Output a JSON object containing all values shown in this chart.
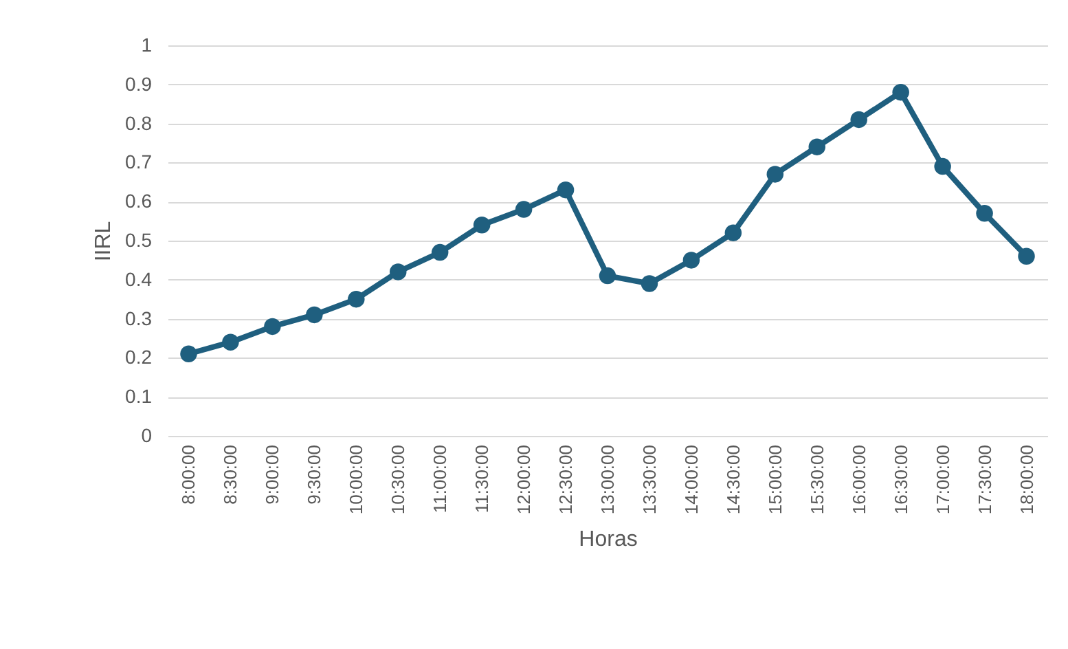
{
  "chart_data": {
    "type": "line",
    "xlabel": "Horas",
    "ylabel": "IIRL",
    "categories": [
      "8:00:00",
      "8:30:00",
      "9:00:00",
      "9:30:00",
      "10:00:00",
      "10:30:00",
      "11:00:00",
      "11:30:00",
      "12:00:00",
      "12:30:00",
      "13:00:00",
      "13:30:00",
      "14:00:00",
      "14:30:00",
      "15:00:00",
      "15:30:00",
      "16:00:00",
      "16:30:00",
      "17:00:00",
      "17:30:00",
      "18:00:00"
    ],
    "series": [
      {
        "color": "#1f5f7f",
        "values": [
          0.21,
          0.24,
          0.28,
          0.31,
          0.35,
          0.42,
          0.47,
          0.54,
          0.58,
          0.63,
          0.41,
          0.39,
          0.45,
          0.52,
          0.67,
          0.74,
          0.81,
          0.88,
          0.69,
          0.57,
          0.46
        ]
      }
    ],
    "ylim": [
      0,
      1
    ],
    "yticks": [
      0,
      0.1,
      0.2,
      0.3,
      0.4,
      0.5,
      0.6,
      0.7,
      0.8,
      0.9,
      1
    ],
    "grid": "y",
    "marker": "circle",
    "line_style": "solid",
    "legend": false
  }
}
